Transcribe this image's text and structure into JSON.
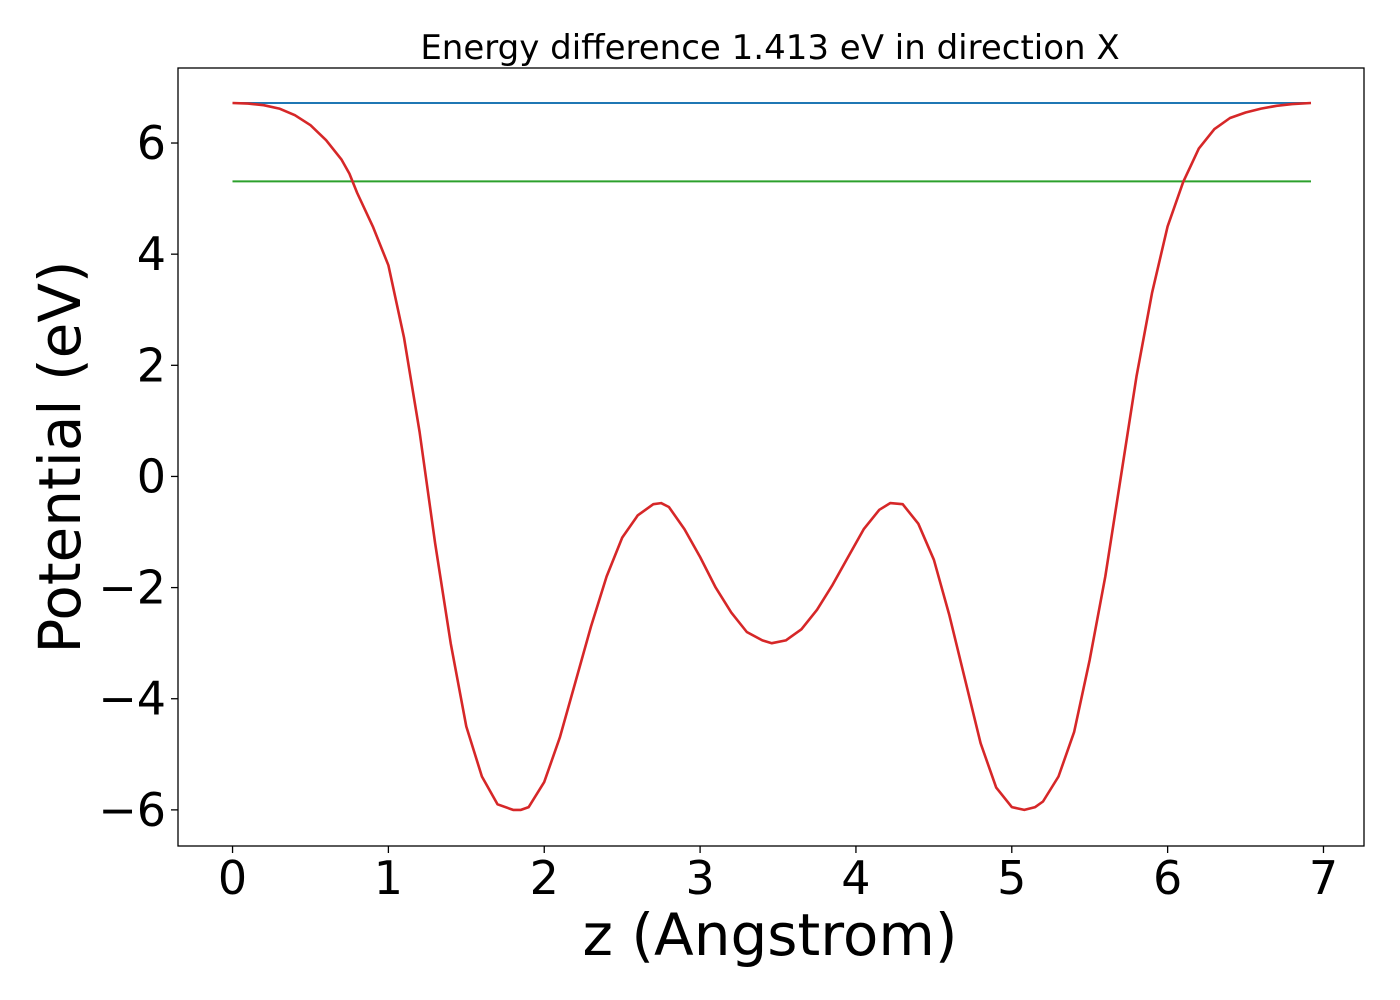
{
  "chart_data": {
    "type": "line",
    "title": "Energy difference 1.413 eV in direction X",
    "xlabel": "z (Angstrom)",
    "ylabel": "Potential (eV)",
    "xlim": [
      -0.35,
      7.26
    ],
    "ylim": [
      -6.65,
      7.35
    ],
    "xticks": [
      0,
      1,
      2,
      3,
      4,
      5,
      6,
      7
    ],
    "xtick_labels": [
      "0",
      "1",
      "2",
      "3",
      "4",
      "5",
      "6",
      "7"
    ],
    "yticks": [
      -6,
      -4,
      -2,
      0,
      2,
      4,
      6
    ],
    "ytick_labels": [
      "−6",
      "−4",
      "−2",
      "0",
      "2",
      "4",
      "6"
    ],
    "grid": false,
    "legend": "none",
    "series": [
      {
        "color": "#1f77b4",
        "x": [
          0,
          6.92
        ],
        "y": [
          6.72,
          6.72
        ]
      },
      {
        "color": "#2ca02c",
        "x": [
          0,
          6.92
        ],
        "y": [
          5.31,
          5.31
        ]
      },
      {
        "color": "#d62728",
        "x": [
          0,
          0.1,
          0.2,
          0.3,
          0.4,
          0.5,
          0.6,
          0.7,
          0.75,
          0.8,
          0.9,
          1.0,
          1.1,
          1.2,
          1.3,
          1.4,
          1.5,
          1.6,
          1.7,
          1.8,
          1.85,
          1.9,
          2.0,
          2.1,
          2.2,
          2.3,
          2.4,
          2.5,
          2.6,
          2.7,
          2.75,
          2.8,
          2.9,
          3.0,
          3.1,
          3.2,
          3.3,
          3.4,
          3.46,
          3.55,
          3.65,
          3.75,
          3.85,
          3.95,
          4.05,
          4.15,
          4.22,
          4.3,
          4.4,
          4.5,
          4.6,
          4.7,
          4.8,
          4.9,
          5.0,
          5.08,
          5.15,
          5.2,
          5.3,
          5.4,
          5.5,
          5.6,
          5.7,
          5.8,
          5.9,
          6.0,
          6.1,
          6.15,
          6.2,
          6.3,
          6.4,
          6.5,
          6.6,
          6.7,
          6.8,
          6.92
        ],
        "y": [
          6.72,
          6.71,
          6.68,
          6.62,
          6.5,
          6.32,
          6.05,
          5.7,
          5.45,
          5.1,
          4.5,
          3.8,
          2.5,
          0.8,
          -1.2,
          -3.0,
          -4.5,
          -5.4,
          -5.9,
          -6.0,
          -6.0,
          -5.95,
          -5.5,
          -4.7,
          -3.7,
          -2.7,
          -1.8,
          -1.1,
          -0.7,
          -0.5,
          -0.48,
          -0.55,
          -0.95,
          -1.45,
          -2.0,
          -2.45,
          -2.8,
          -2.95,
          -3.0,
          -2.95,
          -2.75,
          -2.4,
          -1.95,
          -1.45,
          -0.95,
          -0.6,
          -0.48,
          -0.5,
          -0.85,
          -1.5,
          -2.5,
          -3.65,
          -4.8,
          -5.6,
          -5.95,
          -6.0,
          -5.95,
          -5.85,
          -5.4,
          -4.6,
          -3.3,
          -1.8,
          0.0,
          1.8,
          3.3,
          4.5,
          5.3,
          5.6,
          5.9,
          6.25,
          6.45,
          6.55,
          6.62,
          6.67,
          6.7,
          6.72
        ]
      }
    ]
  }
}
